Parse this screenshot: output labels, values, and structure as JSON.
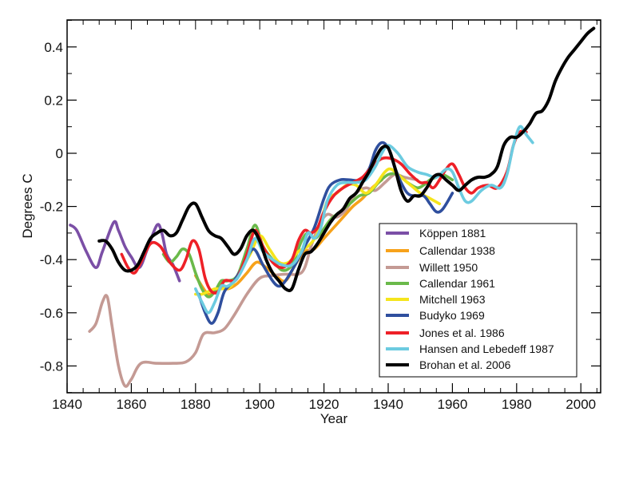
{
  "chart_data": {
    "type": "line",
    "title": "",
    "xlabel": "Year",
    "ylabel": "Degrees C",
    "xlim": [
      1840,
      2006
    ],
    "ylim": [
      -0.9,
      0.5
    ],
    "xticks": [
      1840,
      1860,
      1880,
      1900,
      1920,
      1940,
      1960,
      1980,
      2000
    ],
    "xtick_labels": [
      "1840",
      "1860",
      "1880",
      "1900",
      "1920",
      "1940",
      "1960",
      "1980",
      "2000"
    ],
    "xminor_step": 5,
    "yticks": [
      0.4,
      0.2,
      0,
      -0.2,
      -0.4,
      -0.6,
      -0.8
    ],
    "ytick_labels": [
      "0.4",
      "0.2",
      "0",
      "-0.2",
      "-0.4",
      "-0.6",
      "-0.8"
    ],
    "yminor_step": 0.1,
    "grid": false,
    "legend_position": "lower-right",
    "series": [
      {
        "name": "Köppen 1881",
        "color": "#7b4fa6",
        "x": [
          1841,
          1843,
          1846,
          1849,
          1851,
          1854.5,
          1856,
          1858,
          1860,
          1862.5,
          1865,
          1868,
          1869.5,
          1871,
          1873,
          1875
        ],
        "y": [
          -0.27,
          -0.29,
          -0.37,
          -0.43,
          -0.37,
          -0.26,
          -0.29,
          -0.35,
          -0.39,
          -0.43,
          -0.36,
          -0.27,
          -0.3,
          -0.38,
          -0.42,
          -0.48
        ]
      },
      {
        "name": "Callendar 1938",
        "color": "#f7a21b",
        "x": [
          1880,
          1882,
          1884,
          1886,
          1888,
          1890,
          1893,
          1896,
          1899,
          1902,
          1905,
          1908,
          1911,
          1914,
          1917,
          1920,
          1923,
          1926,
          1929,
          1932,
          1935,
          1938
        ],
        "y": [
          -0.46,
          -0.5,
          -0.53,
          -0.52,
          -0.5,
          -0.51,
          -0.49,
          -0.45,
          -0.41,
          -0.43,
          -0.46,
          -0.48,
          -0.42,
          -0.37,
          -0.36,
          -0.32,
          -0.28,
          -0.24,
          -0.2,
          -0.17,
          -0.13,
          -0.1
        ]
      },
      {
        "name": "Willett 1950",
        "color": "#c49a94",
        "x": [
          1847,
          1849,
          1851,
          1852.5,
          1854,
          1856,
          1858,
          1860,
          1863,
          1868,
          1873,
          1877,
          1880,
          1882.5,
          1886,
          1889,
          1892,
          1896,
          1900,
          1904,
          1908,
          1912,
          1914,
          1916,
          1918.5,
          1921,
          1924,
          1927,
          1930,
          1933,
          1936,
          1939,
          1942,
          1945,
          1949
        ],
        "y": [
          -0.67,
          -0.64,
          -0.56,
          -0.54,
          -0.65,
          -0.8,
          -0.875,
          -0.85,
          -0.79,
          -0.79,
          -0.79,
          -0.785,
          -0.75,
          -0.68,
          -0.675,
          -0.66,
          -0.61,
          -0.53,
          -0.47,
          -0.46,
          -0.455,
          -0.455,
          -0.43,
          -0.35,
          -0.27,
          -0.23,
          -0.24,
          -0.21,
          -0.15,
          -0.13,
          -0.14,
          -0.11,
          -0.08,
          -0.09,
          -0.1
        ]
      },
      {
        "name": "Callendar 1961",
        "color": "#6ab94a",
        "x": [
          1870,
          1872,
          1874,
          1876,
          1878,
          1880,
          1882,
          1884,
          1886,
          1888,
          1890,
          1893,
          1896,
          1898.5,
          1901,
          1904,
          1907,
          1910,
          1913,
          1915,
          1917,
          1919,
          1922,
          1925,
          1928,
          1931,
          1934,
          1937,
          1940,
          1943,
          1946,
          1949,
          1951,
          1953,
          1955,
          1957,
          1960
        ],
        "y": [
          -0.38,
          -0.41,
          -0.39,
          -0.36,
          -0.38,
          -0.45,
          -0.51,
          -0.54,
          -0.52,
          -0.48,
          -0.48,
          -0.46,
          -0.36,
          -0.27,
          -0.35,
          -0.4,
          -0.44,
          -0.42,
          -0.33,
          -0.3,
          -0.32,
          -0.3,
          -0.25,
          -0.22,
          -0.19,
          -0.16,
          -0.15,
          -0.11,
          -0.08,
          -0.08,
          -0.11,
          -0.13,
          -0.12,
          -0.1,
          -0.09,
          -0.08,
          -0.1
        ]
      },
      {
        "name": "Mitchell 1963",
        "color": "#f5e51c",
        "x": [
          1880,
          1882,
          1884,
          1886,
          1888,
          1891,
          1894,
          1897,
          1900,
          1903,
          1906,
          1909,
          1912,
          1915,
          1918,
          1921,
          1924,
          1927,
          1930,
          1933,
          1936,
          1939,
          1941,
          1944,
          1947,
          1950,
          1953,
          1956
        ],
        "y": [
          -0.53,
          -0.53,
          -0.52,
          -0.51,
          -0.51,
          -0.5,
          -0.44,
          -0.38,
          -0.31,
          -0.36,
          -0.41,
          -0.41,
          -0.37,
          -0.35,
          -0.3,
          -0.18,
          -0.15,
          -0.12,
          -0.12,
          -0.15,
          -0.12,
          -0.07,
          -0.06,
          -0.09,
          -0.12,
          -0.15,
          -0.17,
          -0.19
        ]
      },
      {
        "name": "Budyko 1969",
        "color": "#2f4f9e",
        "x": [
          1881,
          1883,
          1885,
          1887,
          1889,
          1892,
          1895,
          1898,
          1901,
          1904,
          1906,
          1908,
          1911,
          1914,
          1917,
          1920,
          1922,
          1925,
          1928,
          1931,
          1934,
          1936,
          1938,
          1940,
          1942,
          1944,
          1946,
          1948,
          1951,
          1953,
          1955,
          1957,
          1960
        ],
        "y": [
          -0.53,
          -0.6,
          -0.64,
          -0.6,
          -0.52,
          -0.48,
          -0.42,
          -0.36,
          -0.42,
          -0.48,
          -0.5,
          -0.48,
          -0.42,
          -0.35,
          -0.28,
          -0.17,
          -0.12,
          -0.1,
          -0.1,
          -0.1,
          -0.06,
          0.01,
          0.04,
          0.02,
          -0.05,
          -0.11,
          -0.15,
          -0.16,
          -0.16,
          -0.19,
          -0.22,
          -0.21,
          -0.15
        ]
      },
      {
        "name": "Jones et al. 1986",
        "color": "#ee2027",
        "x": [
          1857,
          1859,
          1861,
          1863,
          1866,
          1869,
          1872,
          1875,
          1877,
          1879,
          1881,
          1883,
          1885,
          1887,
          1889,
          1891,
          1893,
          1896,
          1898.5,
          1901,
          1904,
          1907,
          1910,
          1912,
          1914,
          1916,
          1918,
          1920,
          1923,
          1926,
          1929,
          1932,
          1935,
          1938,
          1941,
          1944,
          1947,
          1950,
          1952,
          1954,
          1956,
          1958,
          1960,
          1962,
          1964,
          1966,
          1968,
          1971,
          1974,
          1977,
          1979,
          1981,
          1983
        ],
        "y": [
          -0.38,
          -0.43,
          -0.45,
          -0.41,
          -0.34,
          -0.35,
          -0.41,
          -0.44,
          -0.4,
          -0.33,
          -0.36,
          -0.47,
          -0.52,
          -0.52,
          -0.48,
          -0.48,
          -0.47,
          -0.38,
          -0.29,
          -0.35,
          -0.41,
          -0.43,
          -0.4,
          -0.33,
          -0.29,
          -0.3,
          -0.28,
          -0.22,
          -0.16,
          -0.13,
          -0.11,
          -0.09,
          -0.05,
          -0.02,
          -0.02,
          -0.04,
          -0.08,
          -0.11,
          -0.11,
          -0.13,
          -0.1,
          -0.06,
          -0.04,
          -0.08,
          -0.13,
          -0.15,
          -0.13,
          -0.12,
          -0.13,
          -0.07,
          0.03,
          0.08,
          0.08
        ]
      },
      {
        "name": "Hansen and Lebedeff 1987",
        "color": "#6ccbe0",
        "x": [
          1880,
          1882,
          1884,
          1886,
          1888,
          1890,
          1893,
          1896,
          1898.5,
          1901,
          1904,
          1907,
          1910,
          1913,
          1915,
          1917,
          1919,
          1921,
          1924,
          1927,
          1930,
          1933,
          1936,
          1938,
          1940,
          1943,
          1946,
          1949,
          1952,
          1955,
          1958,
          1960,
          1962,
          1964,
          1966,
          1969,
          1972,
          1975,
          1977,
          1979,
          1981,
          1983,
          1985
        ],
        "y": [
          -0.51,
          -0.56,
          -0.6,
          -0.56,
          -0.5,
          -0.5,
          -0.47,
          -0.4,
          -0.32,
          -0.37,
          -0.4,
          -0.42,
          -0.42,
          -0.37,
          -0.3,
          -0.32,
          -0.28,
          -0.18,
          -0.12,
          -0.11,
          -0.11,
          -0.1,
          -0.05,
          0.0,
          0.03,
          0.0,
          -0.05,
          -0.07,
          -0.08,
          -0.09,
          -0.06,
          -0.07,
          -0.13,
          -0.18,
          -0.18,
          -0.14,
          -0.12,
          -0.13,
          -0.08,
          0.03,
          0.1,
          0.07,
          0.04
        ]
      },
      {
        "name": "Brohan et al. 2006",
        "color": "#000000",
        "x": [
          1850,
          1852,
          1854,
          1856,
          1858,
          1860,
          1862,
          1864,
          1866,
          1868,
          1870,
          1872,
          1874,
          1876,
          1878,
          1880,
          1882,
          1884,
          1886,
          1888,
          1890,
          1892,
          1894,
          1896,
          1898,
          1900,
          1902,
          1904,
          1906,
          1908,
          1910,
          1912,
          1914,
          1916,
          1918,
          1920,
          1922,
          1924,
          1926,
          1928,
          1930,
          1932,
          1934,
          1936,
          1938,
          1940,
          1942,
          1944,
          1946,
          1948,
          1950,
          1952,
          1954,
          1956,
          1958,
          1960,
          1962,
          1964,
          1966,
          1968,
          1970,
          1972,
          1974,
          1976,
          1978,
          1980,
          1982,
          1984,
          1986,
          1988,
          1990,
          1992,
          1994,
          1996,
          1998,
          2000,
          2002,
          2004
        ],
        "y": [
          -0.33,
          -0.33,
          -0.36,
          -0.41,
          -0.44,
          -0.44,
          -0.42,
          -0.37,
          -0.32,
          -0.3,
          -0.29,
          -0.31,
          -0.3,
          -0.25,
          -0.2,
          -0.19,
          -0.24,
          -0.29,
          -0.31,
          -0.32,
          -0.35,
          -0.38,
          -0.36,
          -0.31,
          -0.29,
          -0.33,
          -0.4,
          -0.45,
          -0.48,
          -0.51,
          -0.51,
          -0.44,
          -0.38,
          -0.37,
          -0.34,
          -0.3,
          -0.26,
          -0.23,
          -0.21,
          -0.17,
          -0.15,
          -0.11,
          -0.07,
          -0.02,
          0.02,
          0.02,
          -0.05,
          -0.14,
          -0.18,
          -0.16,
          -0.16,
          -0.13,
          -0.09,
          -0.08,
          -0.1,
          -0.12,
          -0.14,
          -0.12,
          -0.1,
          -0.09,
          -0.09,
          -0.08,
          -0.05,
          0.03,
          0.06,
          0.06,
          0.08,
          0.11,
          0.15,
          0.16,
          0.2,
          0.27,
          0.32,
          0.36,
          0.39,
          0.42,
          0.45,
          0.47
        ]
      }
    ]
  }
}
